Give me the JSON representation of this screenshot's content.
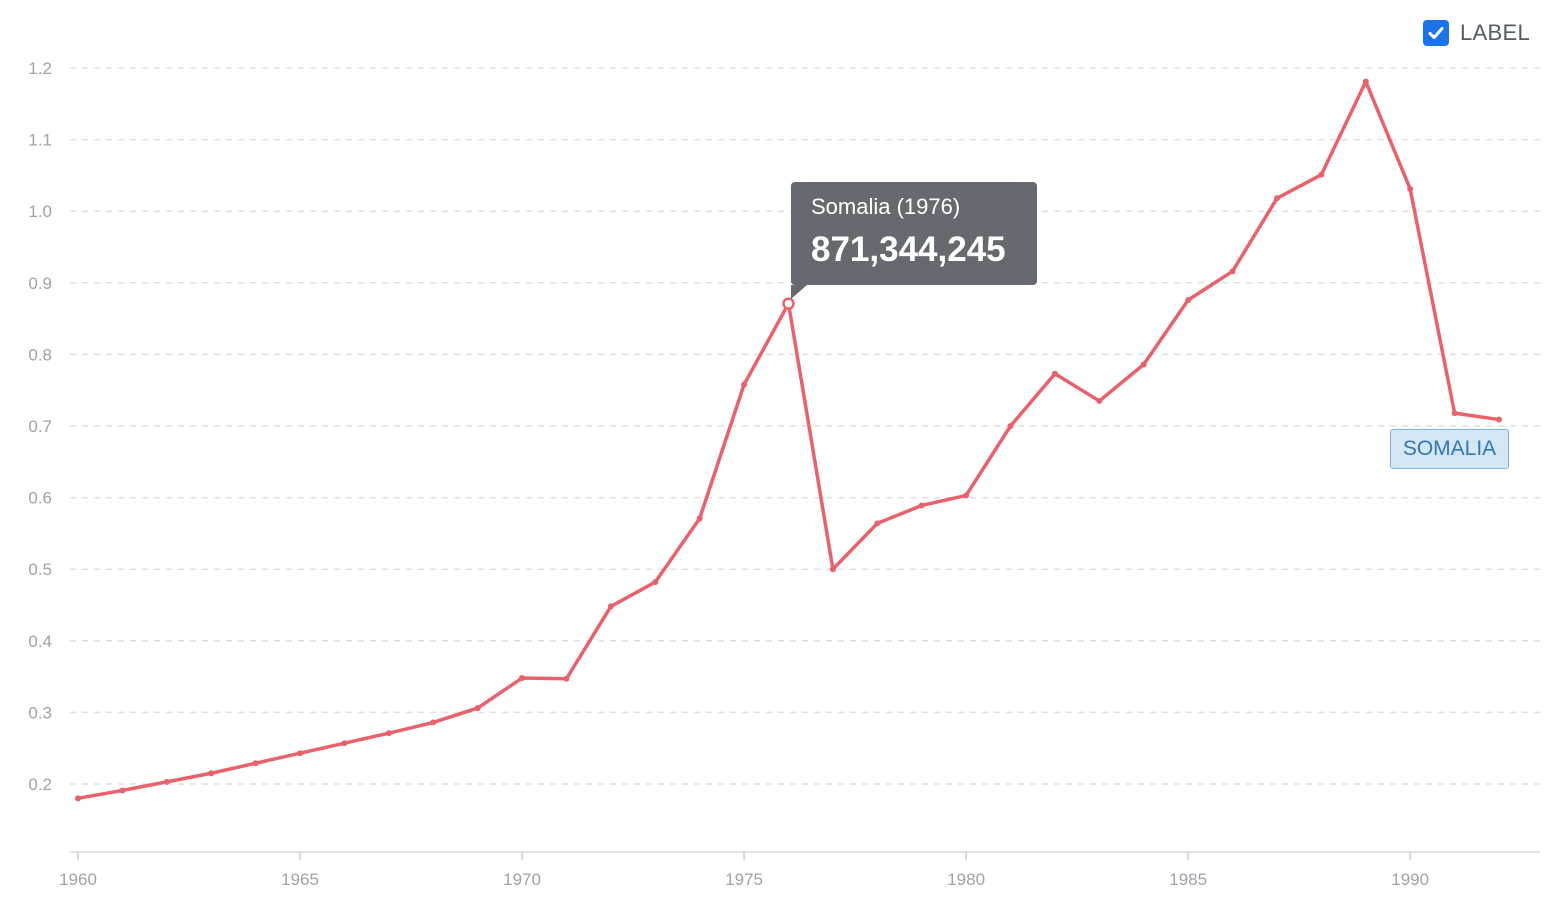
{
  "legend": {
    "checkbox_checked": true,
    "label": "LABEL"
  },
  "tooltip": {
    "title": "Somalia (1976)",
    "value": "871,344,245"
  },
  "series_tag": "SOMALIA",
  "colors": {
    "line": "#e8616b",
    "grid": "#e0e0e0",
    "tick": "#9ea3a8",
    "tooltip_bg": "#666a70",
    "checkbox": "#1a73e8"
  },
  "chart_data": {
    "type": "line",
    "title": "",
    "xlabel": "",
    "ylabel": "",
    "xlim": [
      1960,
      1992
    ],
    "ylim": [
      0.1,
      1.2
    ],
    "grid": true,
    "x_ticks": [
      1960,
      1965,
      1970,
      1975,
      1980,
      1985,
      1990
    ],
    "x_tick_labels": [
      "1960",
      "1965",
      "1970",
      "1975",
      "1980",
      "1985",
      "1990"
    ],
    "y_ticks": [
      0.2,
      0.3,
      0.4,
      0.5,
      0.6,
      0.7,
      0.8,
      0.9,
      1.0,
      1.1,
      1.2
    ],
    "y_tick_labels": [
      "0.2",
      "0.3",
      "0.4",
      "0.5",
      "0.6",
      "0.7",
      "0.8",
      "0.9",
      "1.0",
      "1.1",
      "1.2"
    ],
    "highlight_index": 16,
    "series": [
      {
        "name": "Somalia",
        "x": [
          1960,
          1961,
          1962,
          1963,
          1964,
          1965,
          1966,
          1967,
          1968,
          1969,
          1970,
          1971,
          1972,
          1973,
          1974,
          1975,
          1976,
          1977,
          1978,
          1979,
          1980,
          1981,
          1982,
          1983,
          1984,
          1985,
          1986,
          1987,
          1988,
          1989,
          1990,
          1991,
          1992
        ],
        "values": [
          0.18,
          0.191,
          0.203,
          0.215,
          0.229,
          0.243,
          0.257,
          0.271,
          0.286,
          0.306,
          0.348,
          0.347,
          0.448,
          0.482,
          0.571,
          0.758,
          0.871,
          0.5,
          0.564,
          0.589,
          0.603,
          0.7,
          0.773,
          0.735,
          0.786,
          0.876,
          0.916,
          1.018,
          1.051,
          1.181,
          1.031,
          0.718,
          0.709
        ]
      }
    ]
  }
}
